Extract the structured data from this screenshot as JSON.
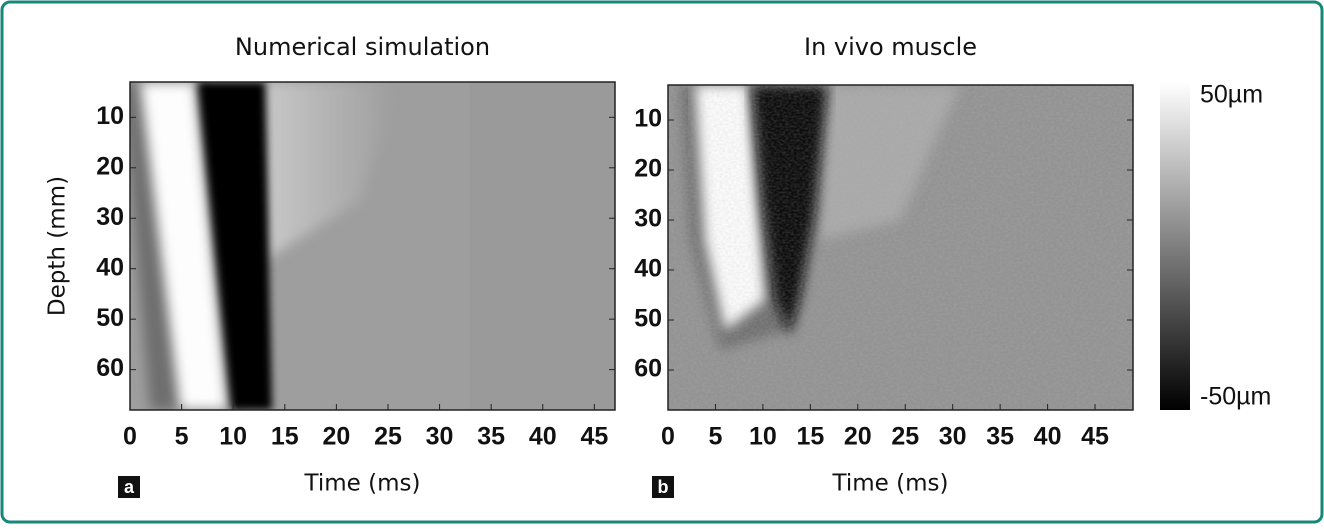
{
  "chart_data": [
    {
      "type": "heatmap",
      "panel_label": "a",
      "title": "Numerical simulation",
      "xlabel": "Time (ms)",
      "ylabel": "Depth (mm)",
      "xlim": [
        0,
        47
      ],
      "xticks": [
        0,
        5,
        10,
        15,
        20,
        25,
        30,
        35,
        40,
        45
      ],
      "ylim": [
        3,
        68
      ],
      "yticks": [
        10,
        20,
        30,
        40,
        50,
        60
      ],
      "y_reversed": true
    },
    {
      "type": "heatmap",
      "panel_label": "b",
      "title": "In vivo muscle",
      "xlabel": "Time (ms)",
      "xlim": [
        0,
        49
      ],
      "xticks": [
        0,
        5,
        10,
        15,
        20,
        25,
        30,
        35,
        40,
        45
      ],
      "ylim": [
        3,
        68
      ],
      "yticks": [
        10,
        20,
        30,
        40,
        50,
        60
      ],
      "y_reversed": true
    }
  ],
  "colorbar": {
    "lim": [
      -50,
      50
    ],
    "ticks": [
      {
        "value": 50,
        "label": "50µm"
      },
      {
        "value": -50,
        "label": "-50µm"
      }
    ]
  }
}
